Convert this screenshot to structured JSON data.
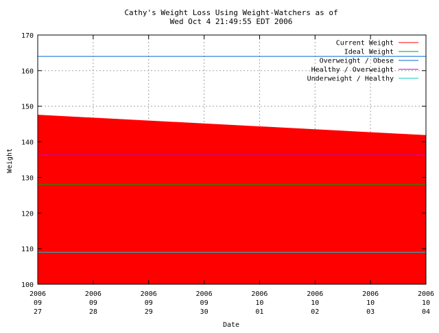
{
  "chart_data": {
    "type": "area",
    "title_lines": [
      "Cathy's Weight Loss Using Weight-Watchers as of",
      "Wed Oct  4 21:49:55 EDT 2006"
    ],
    "xlabel": "Date",
    "ylabel": "Weight",
    "ylim": [
      100,
      170
    ],
    "yticks": [
      100,
      110,
      120,
      130,
      140,
      150,
      160,
      170
    ],
    "x_tick_labels": [
      [
        "2006",
        "09",
        "27"
      ],
      [
        "2006",
        "09",
        "28"
      ],
      [
        "2006",
        "09",
        "29"
      ],
      [
        "2006",
        "09",
        "30"
      ],
      [
        "2006",
        "10",
        "01"
      ],
      [
        "2006",
        "10",
        "02"
      ],
      [
        "2006",
        "10",
        "03"
      ],
      [
        "2006",
        "10",
        "04"
      ]
    ],
    "grid": true,
    "legend_position": "top-right",
    "series": [
      {
        "name": "Current Weight",
        "kind": "area",
        "color": "#ff0000",
        "x": [
          0,
          7
        ],
        "values": [
          147.6,
          141.9
        ]
      },
      {
        "name": "Ideal Weight",
        "kind": "hline",
        "color": "#00a000",
        "value": 128
      },
      {
        "name": "Overweight / Obese",
        "kind": "hline",
        "color": "#0066cc",
        "value": 164
      },
      {
        "name": "Healthy / Overweight",
        "kind": "hline",
        "color": "#c000c0",
        "value": 136.3
      },
      {
        "name": "Underweight / Healthy",
        "kind": "hline",
        "color": "#00c8c8",
        "value": 109
      }
    ]
  }
}
